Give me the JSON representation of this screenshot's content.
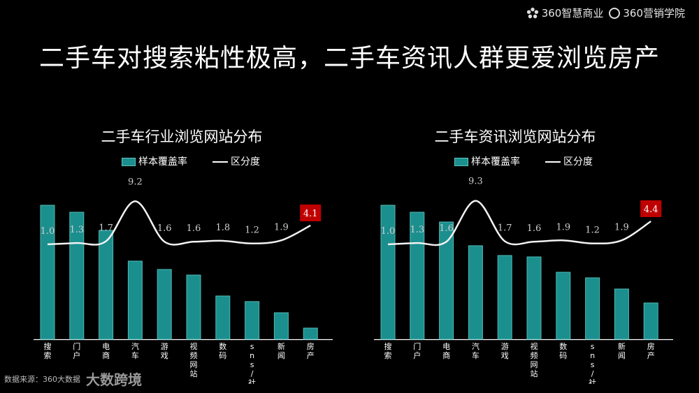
{
  "brand": {
    "logo1": "360智慧商业",
    "logo2": "360营销学院"
  },
  "title": "二手车对搜索粘性极高，二手车资讯人群更爱浏览房产",
  "footer": {
    "source": "数据来源：360大数据",
    "watermark": "大数跨境"
  },
  "chart_data": [
    {
      "type": "bar",
      "title": "二手车行业浏览网站分布",
      "categories": [
        "搜索",
        "门户",
        "电商",
        "汽车",
        "游戏",
        "视频网站",
        "数码",
        "sns/社区",
        "新闻",
        "房产"
      ],
      "series": [
        {
          "name": "样本覆盖率",
          "values": [
            96,
            91,
            78,
            56,
            50,
            46,
            31,
            27,
            19,
            8
          ]
        },
        {
          "name": "区分度",
          "values": [
            1.0,
            1.3,
            1.7,
            9.2,
            1.6,
            1.6,
            1.8,
            1.2,
            1.9,
            4.1
          ]
        }
      ],
      "highlight_index": 9,
      "highlight_color": "#c00000",
      "bar_color": "#1b8f8e"
    },
    {
      "type": "bar",
      "title": "二手车资讯浏览网站分布",
      "categories": [
        "搜索",
        "门户",
        "电商",
        "汽车",
        "游戏",
        "视频网站",
        "数码",
        "sns/社区",
        "新闻",
        "房产"
      ],
      "series": [
        {
          "name": "样本覆盖率",
          "values": [
            96,
            91,
            84,
            67,
            60,
            59,
            48,
            44,
            36,
            26
          ]
        },
        {
          "name": "区分度",
          "values": [
            1.0,
            1.3,
            1.6,
            9.3,
            1.7,
            1.6,
            1.9,
            1.2,
            1.9,
            4.4
          ]
        }
      ],
      "highlight_index": 9,
      "highlight_color": "#c00000",
      "bar_color": "#1b8f8e"
    }
  ]
}
